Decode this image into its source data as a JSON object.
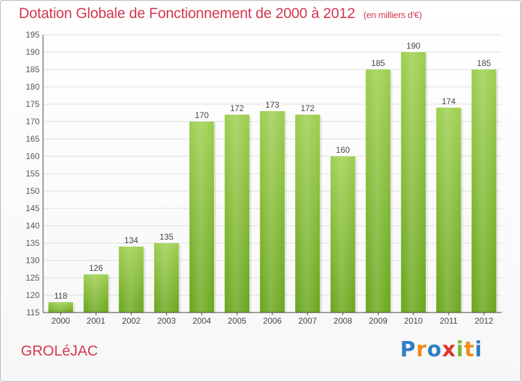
{
  "chart_data": {
    "type": "bar",
    "title": "Dotation Globale de Fonctionnement de 2000 à 2012",
    "unit_label": "(en milliers d'€)",
    "categories": [
      "2000",
      "2001",
      "2002",
      "2003",
      "2004",
      "2005",
      "2006",
      "2007",
      "2008",
      "2009",
      "2010",
      "2011",
      "2012"
    ],
    "values": [
      118,
      126,
      134,
      135,
      170,
      172,
      173,
      172,
      160,
      185,
      190,
      174,
      185
    ],
    "ylim": [
      115,
      195
    ],
    "yticks": [
      115,
      120,
      125,
      130,
      135,
      140,
      145,
      150,
      155,
      160,
      165,
      170,
      175,
      180,
      185,
      190,
      195
    ],
    "grid": true,
    "bar_color": "#8cc63f"
  },
  "commune": "GROLéJAC",
  "logo": {
    "letters": [
      "P",
      "r",
      "o",
      "x",
      "i",
      "t",
      "i"
    ]
  }
}
